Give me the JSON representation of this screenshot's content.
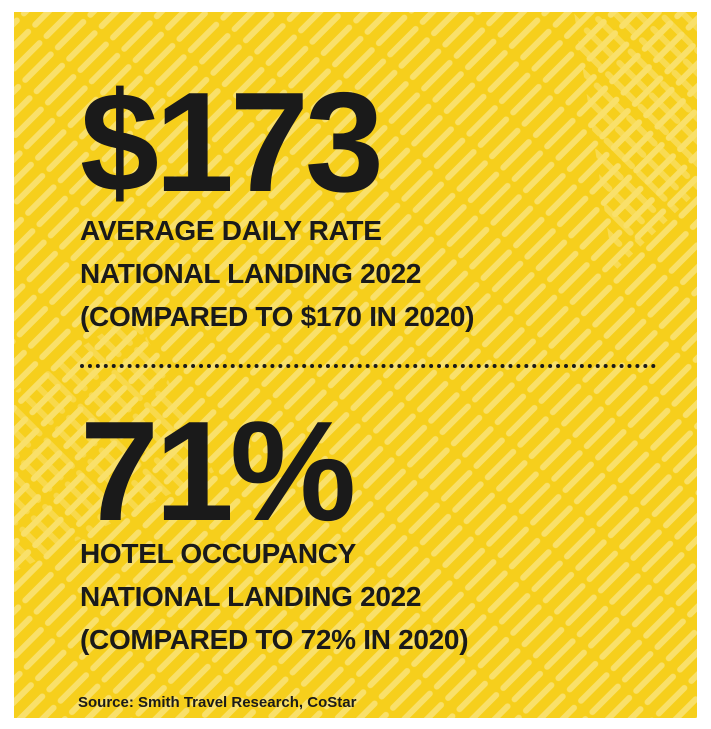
{
  "stats": [
    {
      "value": "$173",
      "lines": [
        "AVERAGE DAILY RATE",
        "NATIONAL LANDING 2022",
        "(COMPARED TO $170 IN 2020)"
      ]
    },
    {
      "value": "71%",
      "lines": [
        "HOTEL OCCUPANCY",
        "NATIONAL LANDING 2022",
        "(COMPARED TO 72% IN 2020)"
      ]
    }
  ],
  "source": "Source: Smith Travel Research, CoStar"
}
